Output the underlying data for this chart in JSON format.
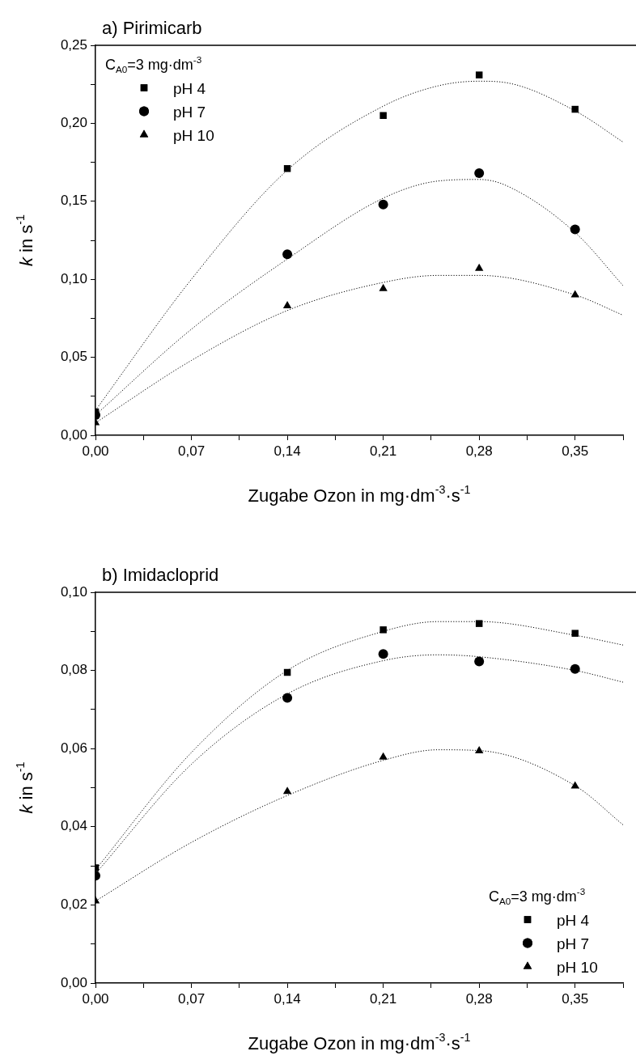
{
  "chart_data": [
    {
      "type": "scatter",
      "title": "a) Pirimicarb",
      "xlabel": "Zugabe Ozon in mg·dm$^{-3}$·s$^{-1}$",
      "ylabel": "k in s$^{-1}$",
      "legend_title": "C$_{A0}$=3 mg·dm$^{-3}$",
      "legend": "top left",
      "grid": false,
      "xlim": [
        0,
        0.385
      ],
      "ylim": [
        0,
        0.25
      ],
      "xticks": [
        {
          "value": 0,
          "label": "0,00"
        },
        {
          "value": 0.035,
          "label": null
        },
        {
          "value": 0.07,
          "label": "0,07"
        },
        {
          "value": 0.105,
          "label": null
        },
        {
          "value": 0.14,
          "label": "0,14"
        },
        {
          "value": 0.175,
          "label": null
        },
        {
          "value": 0.21,
          "label": "0,21"
        },
        {
          "value": 0.245,
          "label": null
        },
        {
          "value": 0.28,
          "label": "0,28"
        },
        {
          "value": 0.315,
          "label": null
        },
        {
          "value": 0.35,
          "label": "0,35"
        },
        {
          "value": 0.385,
          "label": null
        }
      ],
      "yticks": [
        {
          "value": 0,
          "label": "0,00"
        },
        {
          "value": 0.025,
          "label": null
        },
        {
          "value": 0.05,
          "label": "0,05"
        },
        {
          "value": 0.075,
          "label": null
        },
        {
          "value": 0.1,
          "label": "0,10"
        },
        {
          "value": 0.125,
          "label": null
        },
        {
          "value": 0.15,
          "label": "0,15"
        },
        {
          "value": 0.175,
          "label": null
        },
        {
          "value": 0.2,
          "label": "0,20"
        },
        {
          "value": 0.225,
          "label": null
        },
        {
          "value": 0.25,
          "label": "0,25"
        }
      ],
      "x": [
        0,
        0.14,
        0.21,
        0.28,
        0.35
      ],
      "series": [
        {
          "name": "pH 4",
          "color": "#000000",
          "marker": "square",
          "values": [
            0.015,
            0.171,
            0.205,
            0.231,
            0.209
          ]
        },
        {
          "name": "pH 7",
          "color": "#000000",
          "marker": "circle",
          "values": [
            0.013,
            0.116,
            0.148,
            0.168,
            0.132
          ]
        },
        {
          "name": "pH 10",
          "color": "#000000",
          "marker": "triangle",
          "values": [
            0.008,
            0.083,
            0.094,
            0.107,
            0.09
          ]
        },
        {
          "type": "line",
          "color": "#000000",
          "marker": "none",
          "line_style": "dotted",
          "x": [
            0,
            0.07,
            0.14,
            0.21,
            0.25,
            0.28,
            0.3,
            0.35,
            0.385
          ],
          "values": [
            0.016,
            0.1,
            0.17,
            0.211,
            0.224,
            0.227,
            0.226,
            0.208,
            0.188
          ]
        },
        {
          "type": "line",
          "color": "#000000",
          "marker": "none",
          "line_style": "dotted",
          "x": [
            0,
            0.07,
            0.14,
            0.21,
            0.25,
            0.28,
            0.3,
            0.35,
            0.385
          ],
          "values": [
            0.013,
            0.068,
            0.113,
            0.152,
            0.163,
            0.164,
            0.16,
            0.13,
            0.096
          ]
        },
        {
          "type": "line",
          "color": "#000000",
          "marker": "none",
          "line_style": "dotted",
          "x": [
            0,
            0.07,
            0.14,
            0.21,
            0.25,
            0.28,
            0.35,
            0.385
          ],
          "values": [
            0.008,
            0.048,
            0.08,
            0.098,
            0.1025,
            0.1025,
            0.09,
            0.077
          ]
        }
      ]
    },
    {
      "type": "scatter",
      "title": "b) Imidacloprid",
      "xlabel": "Zugabe Ozon in mg·dm$^{-3}$·s$^{-1}$",
      "ylabel": "k in s$^{-1}$",
      "legend_title": "C$_{A0}$=3 mg·dm$^{-3}$",
      "legend": "bottom right",
      "grid": false,
      "xlim": [
        0,
        0.385
      ],
      "ylim": [
        0,
        0.1
      ],
      "xticks": [
        {
          "value": 0,
          "label": "0,00"
        },
        {
          "value": 0.035,
          "label": null
        },
        {
          "value": 0.07,
          "label": "0,07"
        },
        {
          "value": 0.105,
          "label": null
        },
        {
          "value": 0.14,
          "label": "0,14"
        },
        {
          "value": 0.175,
          "label": null
        },
        {
          "value": 0.21,
          "label": "0,21"
        },
        {
          "value": 0.245,
          "label": null
        },
        {
          "value": 0.28,
          "label": "0,28"
        },
        {
          "value": 0.315,
          "label": null
        },
        {
          "value": 0.35,
          "label": "0,35"
        },
        {
          "value": 0.385,
          "label": null
        }
      ],
      "yticks": [
        {
          "value": 0,
          "label": "0,00"
        },
        {
          "value": 0.01,
          "label": null
        },
        {
          "value": 0.02,
          "label": "0,02"
        },
        {
          "value": 0.03,
          "label": null
        },
        {
          "value": 0.04,
          "label": "0,04"
        },
        {
          "value": 0.05,
          "label": null
        },
        {
          "value": 0.06,
          "label": "0,06"
        },
        {
          "value": 0.07,
          "label": null
        },
        {
          "value": 0.08,
          "label": "0,08"
        },
        {
          "value": 0.09,
          "label": null
        },
        {
          "value": 0.1,
          "label": "0,10"
        }
      ],
      "x": [
        0,
        0.14,
        0.21,
        0.28,
        0.35
      ],
      "series": [
        {
          "name": "pH 4",
          "color": "#000000",
          "marker": "square",
          "values": [
            0.0295,
            0.0795,
            0.0904,
            0.092,
            0.0895
          ]
        },
        {
          "name": "pH 7",
          "color": "#000000",
          "marker": "circle",
          "values": [
            0.0275,
            0.073,
            0.0842,
            0.0823,
            0.0804
          ]
        },
        {
          "name": "pH 10",
          "color": "#000000",
          "marker": "triangle",
          "values": [
            0.021,
            0.049,
            0.0578,
            0.0594,
            0.0504
          ]
        },
        {
          "type": "line",
          "color": "#000000",
          "marker": "none",
          "line_style": "dotted",
          "x": [
            0,
            0.07,
            0.14,
            0.21,
            0.25,
            0.28,
            0.35,
            0.385
          ],
          "values": [
            0.029,
            0.059,
            0.08,
            0.09,
            0.0925,
            0.0925,
            0.089,
            0.0865
          ]
        },
        {
          "type": "line",
          "color": "#000000",
          "marker": "none",
          "line_style": "dotted",
          "x": [
            0,
            0.07,
            0.14,
            0.21,
            0.25,
            0.28,
            0.35,
            0.385
          ],
          "values": [
            0.028,
            0.056,
            0.074,
            0.0825,
            0.084,
            0.0835,
            0.08,
            0.077
          ]
        },
        {
          "type": "line",
          "color": "#000000",
          "marker": "none",
          "line_style": "dotted",
          "x": [
            0,
            0.07,
            0.14,
            0.21,
            0.25,
            0.28,
            0.35,
            0.385
          ],
          "values": [
            0.021,
            0.036,
            0.048,
            0.057,
            0.0597,
            0.0595,
            0.0505,
            0.0405
          ]
        }
      ]
    }
  ]
}
